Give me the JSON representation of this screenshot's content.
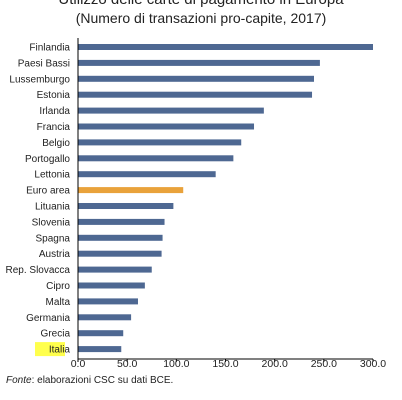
{
  "title": "Utilizzo delle carte di pagamento in Europa",
  "subtitle": "(Numero di transazioni pro-capite, 2017)",
  "source": {
    "label": "Fonte",
    "text": ": elaborazioni CSC su dati BCE."
  },
  "colors": {
    "bar": "#4e6892",
    "highlight_bar": "#e9a23b",
    "highlight_label_bg": "#ffff4d",
    "axis": "#000000"
  },
  "chart_data": {
    "type": "bar",
    "orientation": "horizontal",
    "categories": [
      "Finlandia",
      "Paesi Bassi",
      "Lussemburgo",
      "Estonia",
      "Irlanda",
      "Francia",
      "Belgio",
      "Portogallo",
      "Lettonia",
      "Euro area",
      "Lituania",
      "Slovenia",
      "Spagna",
      "Austria",
      "Rep. Slovacca",
      "Cipro",
      "Malta",
      "Germania",
      "Grecia",
      "Italia"
    ],
    "values": [
      300,
      246,
      240,
      238,
      189,
      179,
      166,
      158,
      140,
      107,
      97,
      88,
      86,
      85,
      75,
      68,
      61,
      54,
      46,
      44
    ],
    "highlight_bar": "Euro area",
    "highlight_label": "Italia",
    "xlim": [
      0,
      300
    ],
    "xticks": [
      "0.0",
      "50.0",
      "100.0",
      "150.0",
      "200.0",
      "250.0",
      "300.0"
    ],
    "xlabel": "",
    "ylabel": "",
    "grid": false
  }
}
